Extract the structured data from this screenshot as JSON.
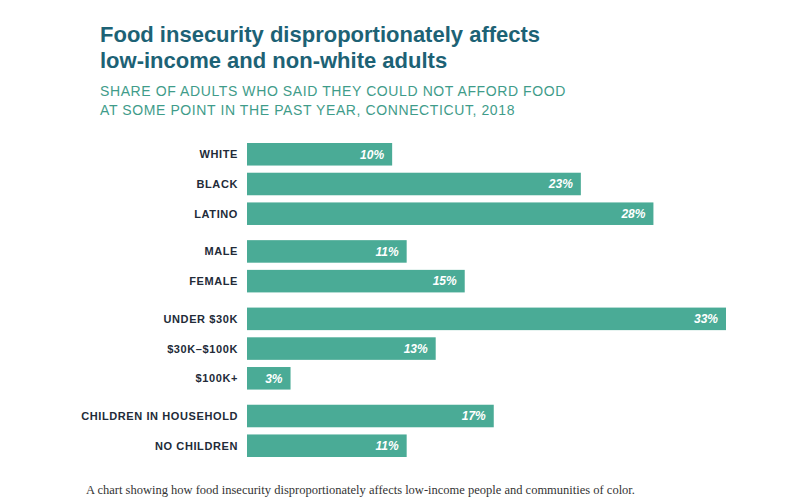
{
  "chart_data": {
    "type": "bar",
    "orientation": "horizontal",
    "title": "Food insecurity disproportionately affects\nlow-income and non-white adults",
    "subtitle": "SHARE OF ADULTS WHO SAID THEY COULD NOT AFFORD FOOD\nAT SOME POINT IN THE PAST YEAR, CONNECTICUT, 2018",
    "caption": "A chart showing how food insecurity disproportionately affects low-income people and communities of color.",
    "categories": [
      "WHITE",
      "BLACK",
      "LATINO",
      "MALE",
      "FEMALE",
      "UNDER $30K",
      "$30K–$100K",
      "$100K+",
      "CHILDREN IN HOUSEHOLD",
      "NO CHILDREN"
    ],
    "values": [
      10,
      23,
      28,
      11,
      15,
      33,
      13,
      3,
      17,
      11
    ],
    "value_labels": [
      "10%",
      "23%",
      "28%",
      "11%",
      "15%",
      "33%",
      "13%",
      "3%",
      "17%",
      "11%"
    ],
    "color": "#4aab96",
    "xlim": [
      0,
      33
    ],
    "data_labels": true,
    "tick_labels": "y"
  }
}
